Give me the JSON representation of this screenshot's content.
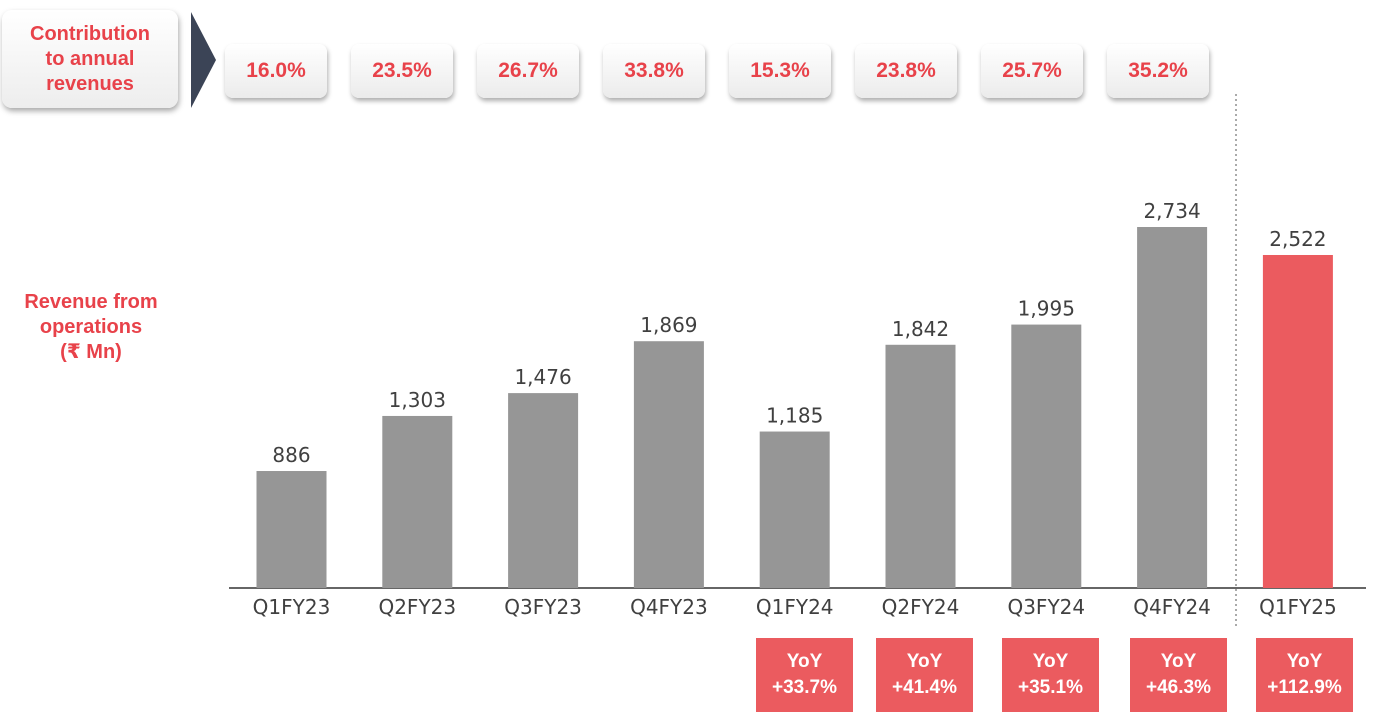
{
  "header": {
    "contribution_label": "Contribution\nto annual\nrevenues",
    "contributions": [
      "16.0%",
      "23.5%",
      "26.7%",
      "33.8%",
      "15.3%",
      "23.8%",
      "25.7%",
      "35.2%"
    ]
  },
  "side_label": "Revenue from\noperations\n(₹ Mn)",
  "yoy": [
    {
      "label": "YoY",
      "value": "+33.7%"
    },
    {
      "label": "YoY",
      "value": "+41.4%"
    },
    {
      "label": "YoY",
      "value": "+35.1%"
    },
    {
      "label": "YoY",
      "value": "+46.3%"
    },
    {
      "label": "YoY",
      "value": "+112.9%"
    }
  ],
  "colors": {
    "bar": "#969696",
    "highlight": "#eb5b5f",
    "accent": "#e8424a",
    "arrow": "#3b4456"
  },
  "chart_data": {
    "type": "bar",
    "categories": [
      "Q1FY23",
      "Q2FY23",
      "Q3FY23",
      "Q4FY23",
      "Q1FY24",
      "Q2FY24",
      "Q3FY24",
      "Q4FY24",
      "Q1FY25"
    ],
    "values": [
      886,
      1303,
      1476,
      1869,
      1185,
      1842,
      1995,
      2734,
      2522
    ],
    "value_labels": [
      "886",
      "1,303",
      "1,476",
      "1,869",
      "1,185",
      "1,842",
      "1,995",
      "2,734",
      "2,522"
    ],
    "highlight_index": 8,
    "ylim": [
      0,
      2850
    ],
    "grid": false,
    "title": "",
    "xlabel": "",
    "ylabel": ""
  }
}
